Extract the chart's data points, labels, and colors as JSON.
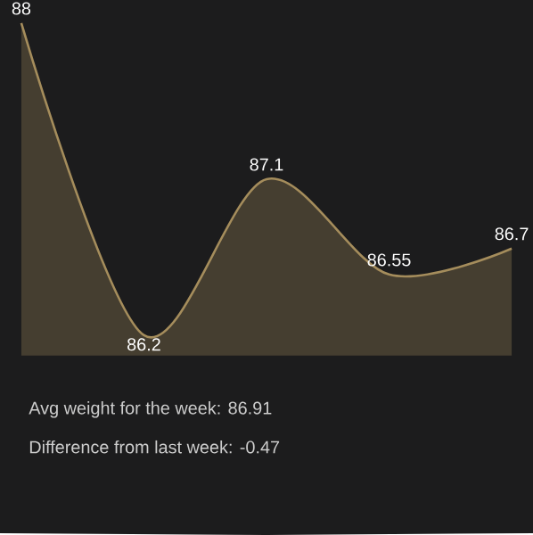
{
  "chart_data": {
    "type": "area",
    "categories": [
      null,
      null,
      null,
      null,
      null
    ],
    "values": [
      88,
      86.2,
      87.1,
      86.55,
      86.7
    ],
    "color": "#a58d5c",
    "data_labels": true,
    "annotations": [
      "Avg weight for the week: 86.91",
      "Difference from last week: -0.47"
    ]
  }
}
